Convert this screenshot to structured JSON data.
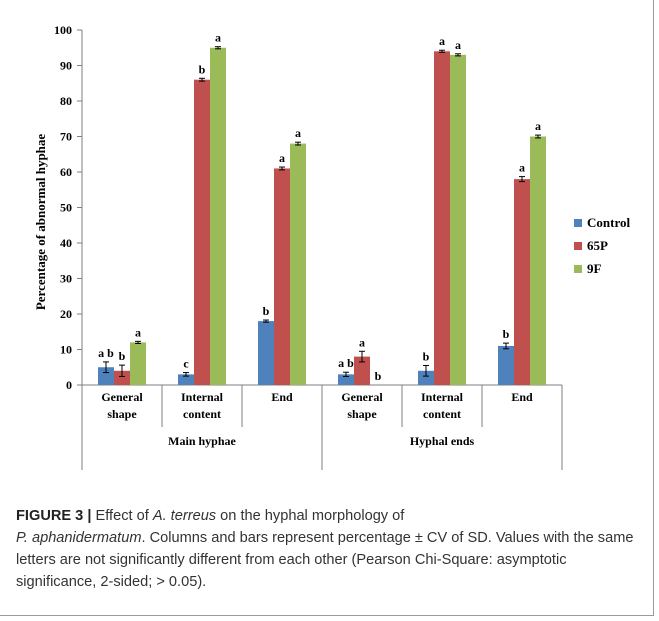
{
  "chart_data": {
    "type": "bar",
    "ylabel": "Percentage of abnormal hyphae",
    "ylim": [
      0,
      100
    ],
    "yticks": [
      0,
      10,
      20,
      30,
      40,
      50,
      60,
      70,
      80,
      90,
      100
    ],
    "groups": [
      {
        "label": "Main hyphae",
        "categories": [
          [
            "General",
            "shape"
          ],
          [
            "Internal",
            "content"
          ],
          [
            "End"
          ]
        ]
      },
      {
        "label": "Hyphal ends",
        "categories": [
          [
            "General",
            "shape"
          ],
          [
            "Internal",
            "content"
          ],
          [
            "End"
          ]
        ]
      }
    ],
    "series": [
      {
        "name": "Control",
        "color": "#4f81bd",
        "values": [
          5,
          3,
          18,
          3,
          4,
          11
        ],
        "errors": [
          1.5,
          0.5,
          0.3,
          0.6,
          1.5,
          0.8
        ],
        "letters": [
          "a b",
          "c",
          "b",
          "a b",
          "b",
          "b"
        ]
      },
      {
        "name": "65P",
        "color": "#c0504d",
        "values": [
          4,
          86,
          61,
          8,
          94,
          58
        ],
        "errors": [
          1.6,
          0.4,
          0.4,
          1.5,
          0.3,
          0.7
        ],
        "letters": [
          "b",
          "b",
          "a",
          "a",
          "a",
          "a"
        ]
      },
      {
        "name": "9F",
        "color": "#9bbb59",
        "values": [
          12,
          95,
          68,
          0,
          93,
          70
        ],
        "errors": [
          0.3,
          0.3,
          0.4,
          0,
          0.3,
          0.4
        ],
        "letters": [
          "a",
          "a",
          "a",
          "b",
          "a",
          "a"
        ]
      }
    ],
    "legend_position": "right"
  },
  "caption": {
    "label": "FIGURE 3 |",
    "t1": " Effect of ",
    "t2": "A. terreus",
    "t3": " on the hyphal morphology of",
    "t4": "P. aphanidermatum",
    "t5": ". Columns and bars represent percentage ± CV of SD. Values with the same letters are not significantly different from each other (Pearson Chi-Square: asymptotic significance, 2-sided; > 0.05)."
  }
}
